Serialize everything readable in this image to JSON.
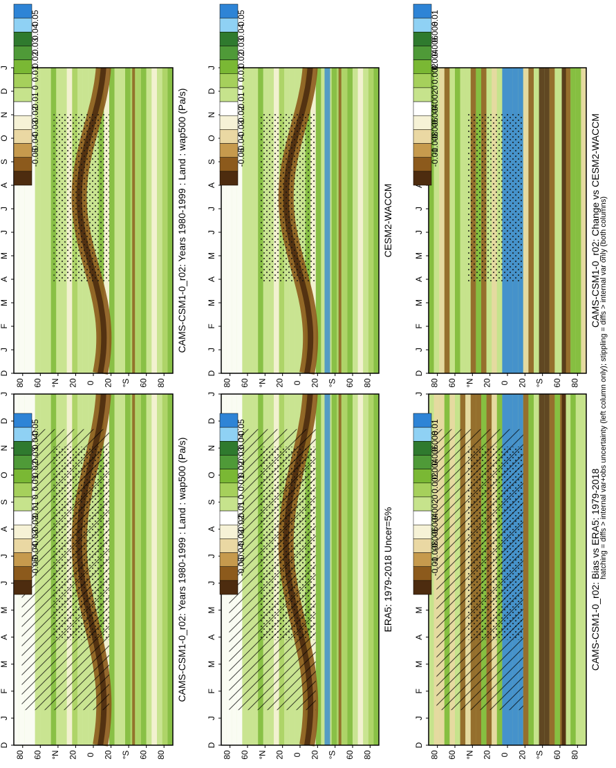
{
  "figure": {
    "footnote": "hatching = diffs > internal var+obs uncertainty (left column only); stippling = diffs > internal var only (both columns)"
  },
  "colors": {
    "land_green_dark": "#2f7a2e",
    "land_green": "#7ab834",
    "land_green_light": "#c6e38c",
    "neutral_light": "#f6f2d6",
    "white": "#ffffff",
    "tan_light": "#ead8a3",
    "tan": "#c69a4d",
    "brown": "#8c5a1c",
    "brown_dark": "#4d2c0f",
    "blue_dark": "#2e84d6",
    "blue_light": "#8fd1f4",
    "stipple": "#111111"
  },
  "chart_data": [
    {
      "id": "p1",
      "type": "heatmap",
      "title": "CAMS-CSM1-0_r02: Years 1980-1999 : Land : wap500 (Pa/s)",
      "xlabel": "",
      "ylabel": "",
      "x_ticks": [
        "D",
        "J",
        "F",
        "M",
        "A",
        "M",
        "J",
        "J",
        "A",
        "S",
        "O",
        "N",
        "D",
        "J"
      ],
      "y_ticks": [
        "80",
        "60",
        "°N",
        "20",
        "0",
        "20",
        "°S",
        "60",
        "80"
      ],
      "ylim": [
        -90,
        90
      ],
      "colorbar_labels": [
        "0.05",
        "0.04",
        "0.03",
        "0.02",
        "0.01",
        "0",
        "-0.01",
        "-0.02",
        "-0.03",
        "-0.04",
        "-0.05"
      ],
      "hatching": true,
      "stippling": true
    },
    {
      "id": "p2",
      "type": "heatmap",
      "title": "ERA5: 1979-2018 Uncer=5%",
      "xlabel": "",
      "ylabel": "",
      "x_ticks": [
        "D",
        "J",
        "F",
        "M",
        "A",
        "M",
        "J",
        "J",
        "A",
        "S",
        "O",
        "N",
        "D",
        "J"
      ],
      "y_ticks": [
        "80",
        "60",
        "°N",
        "20",
        "0",
        "20",
        "°S",
        "60",
        "80"
      ],
      "ylim": [
        -90,
        90
      ],
      "colorbar_labels": [
        "0.05",
        "0.04",
        "0.03",
        "0.02",
        "0.01",
        "0",
        "-0.01",
        "-0.02",
        "-0.03",
        "-0.04",
        "-0.05"
      ],
      "hatching": true,
      "stippling": true
    },
    {
      "id": "p3",
      "type": "heatmap",
      "title": "CAMS-CSM1-0_r02: Bias vs ERA5: 1979-2018",
      "xlabel": "",
      "ylabel": "",
      "x_ticks": [
        "D",
        "J",
        "F",
        "M",
        "A",
        "M",
        "J",
        "J",
        "A",
        "S",
        "O",
        "N",
        "D",
        "J"
      ],
      "y_ticks": [
        "80",
        "60",
        "°N",
        "20",
        "0",
        "20",
        "°S",
        "60",
        "80"
      ],
      "ylim": [
        -90,
        90
      ],
      "colorbar_labels": [
        "0.01",
        "0.008",
        "0.006",
        "0.004",
        "0.002",
        "0",
        "-0.002",
        "-0.004",
        "-0.006",
        "-0.008",
        "-0.01"
      ],
      "hatching": true,
      "stippling": true
    },
    {
      "id": "p4",
      "type": "heatmap",
      "title": "CAMS-CSM1-0_r02: Years 1980-1999 : Land : wap500 (Pa/s)",
      "xlabel": "",
      "ylabel": "",
      "x_ticks": [
        "D",
        "J",
        "F",
        "M",
        "A",
        "M",
        "J",
        "J",
        "A",
        "S",
        "O",
        "N",
        "D",
        "J"
      ],
      "y_ticks": [
        "80",
        "60",
        "°N",
        "20",
        "0",
        "20",
        "°S",
        "60",
        "80"
      ],
      "ylim": [
        -90,
        90
      ],
      "colorbar_labels": [
        "0.05",
        "0.04",
        "0.03",
        "0.02",
        "0.01",
        "0",
        "-0.01",
        "-0.02",
        "-0.03",
        "-0.04",
        "-0.05"
      ],
      "hatching": false,
      "stippling": true
    },
    {
      "id": "p5",
      "type": "heatmap",
      "title": "CESM2-WACCM",
      "xlabel": "",
      "ylabel": "",
      "x_ticks": [
        "D",
        "J",
        "F",
        "M",
        "A",
        "M",
        "J",
        "J",
        "A",
        "S",
        "O",
        "N",
        "D",
        "J"
      ],
      "y_ticks": [
        "80",
        "60",
        "°N",
        "20",
        "0",
        "20",
        "°S",
        "60",
        "80"
      ],
      "ylim": [
        -90,
        90
      ],
      "colorbar_labels": [
        "0.05",
        "0.04",
        "0.03",
        "0.02",
        "0.01",
        "0",
        "-0.01",
        "-0.02",
        "-0.03",
        "-0.04",
        "-0.05"
      ],
      "hatching": false,
      "stippling": true
    },
    {
      "id": "p6",
      "type": "heatmap",
      "title": "CAMS-CSM1-0_r02: Change vs CESM2-WACCM",
      "xlabel": "",
      "ylabel": "",
      "x_ticks": [
        "D",
        "J",
        "F",
        "M",
        "A",
        "M",
        "J",
        "J",
        "A",
        "S",
        "O",
        "N",
        "D",
        "J"
      ],
      "y_ticks": [
        "80",
        "60",
        "°N",
        "20",
        "0",
        "20",
        "°S",
        "60",
        "80"
      ],
      "ylim": [
        -90,
        90
      ],
      "colorbar_labels": [
        "0.01",
        "0.008",
        "0.006",
        "0.004",
        "0.002",
        "0",
        "-0.002",
        "-0.004",
        "-0.006",
        "-0.008",
        "-0.01"
      ],
      "hatching": false,
      "stippling": true
    }
  ]
}
